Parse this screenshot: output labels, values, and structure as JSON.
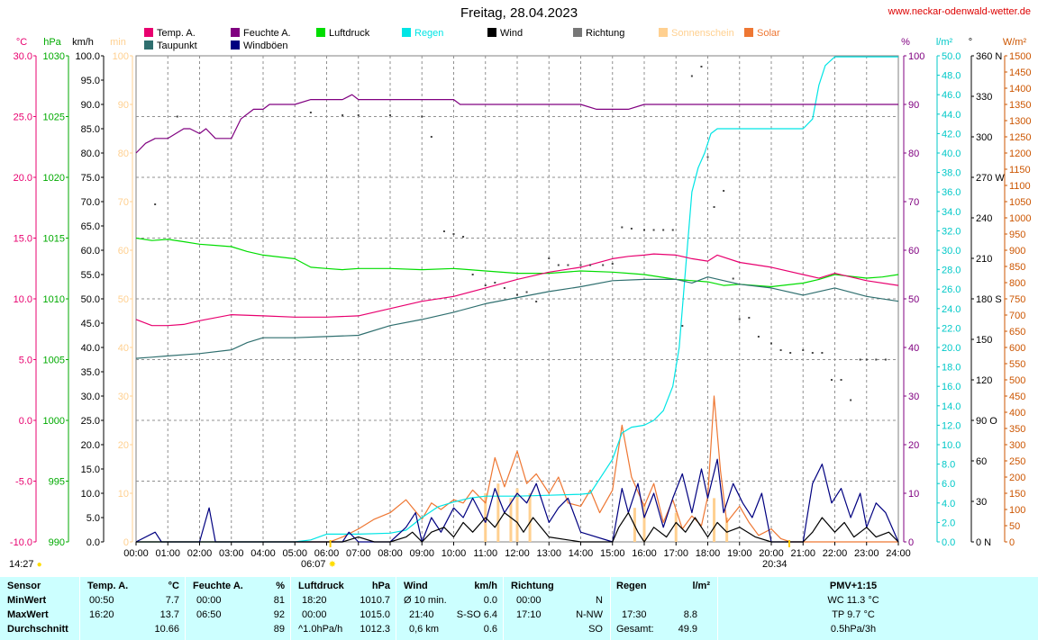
{
  "header": {
    "title": "Freitag, 28.04.2023",
    "site": "www.neckar-odenwald-wetter.de"
  },
  "legend": [
    {
      "label": "Temp. A.",
      "color": "#e8006f"
    },
    {
      "label": "Taupunkt",
      "color": "#2f6f6f"
    },
    {
      "label": "Feuchte A.",
      "color": "#800080"
    },
    {
      "label": "Windböen",
      "color": "#000080"
    },
    {
      "label": "Luftdruck",
      "color": "#00dd00"
    },
    {
      "label": "Regen",
      "color": "#00e5e5"
    },
    {
      "label": "Wind",
      "color": "#000000"
    },
    {
      "label": "Richtung",
      "color": "#777777"
    },
    {
      "label": "Sonnenschein",
      "color": "#ffd090"
    },
    {
      "label": "Solar",
      "color": "#ee7733"
    }
  ],
  "markers": {
    "time_now": "14:27",
    "sunrise": "06:07",
    "sunset": "20:34"
  },
  "chart_data": {
    "type": "line",
    "x_ticks": [
      "00:00",
      "01:00",
      "02:00",
      "03:00",
      "04:00",
      "05:00",
      "06:00",
      "07:00",
      "08:00",
      "09:00",
      "10:00",
      "11:00",
      "12:00",
      "13:00",
      "14:00",
      "15:00",
      "16:00",
      "17:00",
      "18:00",
      "19:00",
      "20:00",
      "21:00",
      "22:00",
      "23:00",
      "24:00"
    ],
    "axes": {
      "temp": {
        "unit": "°C",
        "color": "#e8006f",
        "range": [
          -10,
          30
        ],
        "ticks": [
          "30.0",
          "25.0",
          "20.0",
          "15.0",
          "10.0",
          "5.0",
          "0.0",
          "-5.0",
          "-10.0"
        ]
      },
      "pressure": {
        "unit": "hPa",
        "color": "#00aa00",
        "range": [
          990,
          1030
        ],
        "ticks": [
          "1030",
          "1025",
          "1020",
          "1015",
          "1010",
          "1005",
          "1000",
          "995",
          "990"
        ]
      },
      "wind": {
        "unit": "km/h",
        "color": "#000000",
        "range": [
          0,
          100
        ],
        "ticks": [
          "100.0",
          "95.0",
          "90.0",
          "85.0",
          "80.0",
          "75.0",
          "70.0",
          "65.0",
          "60.0",
          "55.0",
          "50.0",
          "45.0",
          "40.0",
          "35.0",
          "30.0",
          "25.0",
          "20.0",
          "15.0",
          "10.0",
          "5.0",
          "0.0"
        ]
      },
      "sun": {
        "unit": "min",
        "color": "#ffd090",
        "range": [
          0,
          100
        ],
        "ticks": [
          "100",
          "90",
          "80",
          "70",
          "60",
          "50",
          "40",
          "30",
          "20",
          "10",
          "0"
        ]
      },
      "humidity": {
        "unit": "%",
        "color": "#800080",
        "range": [
          0,
          100
        ],
        "ticks": [
          "100",
          "90",
          "80",
          "70",
          "60",
          "50",
          "40",
          "30",
          "20",
          "10",
          "0"
        ]
      },
      "rain": {
        "unit": "l/m²",
        "color": "#00c8c8",
        "range": [
          0,
          50
        ],
        "ticks": [
          "50.0",
          "48.0",
          "46.0",
          "44.0",
          "42.0",
          "40.0",
          "38.0",
          "36.0",
          "34.0",
          "32.0",
          "30.0",
          "28.0",
          "26.0",
          "24.0",
          "22.0",
          "20.0",
          "18.0",
          "16.0",
          "14.0",
          "12.0",
          "10.0",
          "8.0",
          "6.0",
          "4.0",
          "2.0",
          "0.0"
        ]
      },
      "direction": {
        "unit": "°",
        "color": "#000000",
        "range": [
          0,
          360
        ],
        "ticks": [
          "360 N",
          "330",
          "300",
          "270 W",
          "240",
          "210",
          "180 S",
          "150",
          "120",
          "90 O",
          "60",
          "30",
          "0 N"
        ]
      },
      "solar": {
        "unit": "W/m²",
        "color": "#cc5500",
        "range": [
          0,
          1500
        ],
        "ticks": [
          "1500",
          "1450",
          "1400",
          "1350",
          "1300",
          "1250",
          "1200",
          "1150",
          "1100",
          "1050",
          "1000",
          "950",
          "900",
          "850",
          "800",
          "750",
          "700",
          "650",
          "600",
          "550",
          "500",
          "450",
          "400",
          "350",
          "300",
          "250",
          "200",
          "150",
          "100",
          "50",
          "0"
        ]
      }
    },
    "series": [
      {
        "name": "Temp. A.",
        "axis": "temp",
        "color": "#e8006f",
        "x": [
          0,
          0.5,
          1,
          1.5,
          2,
          3,
          4,
          5,
          6,
          7,
          8,
          9,
          10,
          11,
          12,
          13,
          14,
          15,
          15.5,
          16,
          16.3,
          17,
          17.5,
          18,
          18.3,
          19,
          20,
          21,
          21.5,
          22,
          23,
          24
        ],
        "y": [
          8.3,
          7.8,
          7.8,
          7.9,
          8.2,
          8.7,
          8.6,
          8.5,
          8.5,
          8.6,
          9.2,
          9.8,
          10.2,
          10.9,
          11.6,
          12.2,
          12.6,
          13.3,
          13.5,
          13.6,
          13.7,
          13.6,
          13.3,
          13.1,
          13.6,
          13.0,
          12.6,
          12.0,
          11.7,
          12.1,
          11.5,
          11.1
        ]
      },
      {
        "name": "Taupunkt",
        "axis": "temp",
        "color": "#2f6f6f",
        "x": [
          0,
          0.5,
          1,
          2,
          3,
          3.5,
          4,
          5,
          6,
          7,
          8,
          9,
          10,
          11,
          12,
          13,
          14,
          15,
          16,
          17,
          17.5,
          18,
          19,
          20,
          21,
          21.5,
          22,
          23,
          24
        ],
        "y": [
          5.1,
          5.2,
          5.3,
          5.5,
          5.8,
          6.4,
          6.8,
          6.8,
          6.9,
          7.0,
          7.8,
          8.3,
          8.9,
          9.6,
          10.1,
          10.6,
          11.0,
          11.5,
          11.6,
          11.6,
          11.3,
          11.8,
          11.2,
          10.9,
          10.3,
          10.6,
          10.9,
          10.2,
          9.8
        ]
      },
      {
        "name": "Feuchte A.",
        "axis": "humidity",
        "color": "#800080",
        "x": [
          0,
          0.3,
          0.6,
          1,
          1.5,
          1.7,
          2,
          2.2,
          2.5,
          3,
          3.3,
          3.7,
          4,
          4.2,
          4.5,
          5,
          5.5,
          6,
          6.5,
          6.8,
          7,
          8,
          9,
          10,
          10.2,
          12,
          14,
          14.5,
          15,
          15.5,
          16,
          17,
          18,
          24
        ],
        "y": [
          80,
          82,
          83,
          83,
          85,
          85,
          84,
          85,
          83,
          83,
          87,
          89,
          89,
          90,
          90,
          90,
          91,
          91,
          91,
          92,
          91,
          91,
          91,
          91,
          90,
          90,
          90,
          89,
          89,
          89,
          90,
          90,
          90,
          90
        ]
      },
      {
        "name": "Luftdruck",
        "axis": "pressure",
        "color": "#00dd00",
        "x": [
          0,
          0.5,
          1,
          1.5,
          2,
          2.5,
          3,
          3.5,
          4,
          5,
          5.5,
          6,
          6.5,
          7,
          8,
          9,
          10,
          11,
          12,
          13,
          14,
          15,
          15.5,
          16,
          17,
          18,
          18.5,
          19,
          20,
          21,
          21.5,
          22,
          23,
          23.5,
          24
        ],
        "y": [
          1015.0,
          1014.8,
          1014.9,
          1014.7,
          1014.5,
          1014.4,
          1014.3,
          1013.9,
          1013.6,
          1013.3,
          1012.6,
          1012.5,
          1012.4,
          1012.5,
          1012.5,
          1012.4,
          1012.5,
          1012.3,
          1012.1,
          1012.1,
          1012.3,
          1012.2,
          1012.1,
          1012.0,
          1011.6,
          1011.4,
          1011.1,
          1011.2,
          1011.0,
          1011.3,
          1011.6,
          1012.0,
          1011.7,
          1011.8,
          1012.0
        ]
      },
      {
        "name": "Regen",
        "axis": "rain",
        "color": "#00e5e5",
        "x": [
          0,
          5,
          5.5,
          6,
          7,
          8,
          8.5,
          9,
          9.5,
          10,
          10.5,
          11,
          12,
          13,
          14,
          14.3,
          14.7,
          15,
          15.3,
          15.6,
          16,
          16.3,
          16.6,
          16.9,
          17.1,
          17.3,
          17.5,
          17.7,
          17.9,
          18.1,
          18.3,
          19,
          20,
          21,
          21.3,
          21.5,
          21.7,
          22,
          24
        ],
        "y": [
          0,
          0,
          0.2,
          0.8,
          0.8,
          0.9,
          1.2,
          2.5,
          3.6,
          4.1,
          4.5,
          4.7,
          4.7,
          4.8,
          4.9,
          5.0,
          7.0,
          8.5,
          11.2,
          11.8,
          12.0,
          12.5,
          13.5,
          16.0,
          20.0,
          28.0,
          36.0,
          38.5,
          40.0,
          42.0,
          42.5,
          42.5,
          42.5,
          42.5,
          43.5,
          47.0,
          49.0,
          49.9,
          49.9
        ]
      },
      {
        "name": "Wind",
        "axis": "wind",
        "color": "#000000",
        "x": [
          0,
          6.5,
          7,
          7.5,
          8,
          8.5,
          8.7,
          9,
          9.3,
          9.7,
          10,
          10.3,
          10.6,
          11,
          11.3,
          11.6,
          12,
          12.2,
          12.5,
          13,
          14,
          15,
          15.2,
          15.5,
          15.8,
          16,
          16.3,
          16.7,
          17,
          17.3,
          17.6,
          18,
          18.3,
          18.6,
          19,
          19.5,
          20,
          21,
          21.3,
          21.6,
          22,
          22.3,
          22.6,
          23,
          23.3,
          23.7,
          24
        ],
        "y": [
          0,
          0,
          1,
          0,
          0,
          1,
          2,
          0,
          2,
          3,
          1,
          4,
          2,
          5,
          3,
          6,
          4,
          2,
          5,
          1,
          0,
          0,
          3,
          6,
          2,
          0,
          3,
          1,
          4,
          2,
          5,
          1,
          4,
          2,
          3,
          1,
          0,
          0,
          2,
          5,
          2,
          4,
          1,
          3,
          1,
          2,
          0
        ]
      },
      {
        "name": "Windböen",
        "axis": "wind",
        "color": "#000080",
        "x": [
          0,
          0.6,
          0.8,
          1,
          2,
          2.3,
          2.5,
          3,
          6.5,
          6.7,
          7,
          8,
          8.5,
          8.8,
          9,
          9.3,
          9.6,
          10,
          10.3,
          10.6,
          11,
          11.3,
          11.6,
          12,
          12.3,
          12.6,
          13,
          13.3,
          13.6,
          14,
          15,
          15.3,
          15.5,
          15.8,
          16,
          16.3,
          16.6,
          16.9,
          17.2,
          17.5,
          17.8,
          18,
          18.3,
          18.5,
          18.8,
          19.1,
          19.4,
          19.7,
          20,
          21,
          21.3,
          21.6,
          21.9,
          22.2,
          22.5,
          22.8,
          23,
          23.3,
          23.6,
          24
        ],
        "y": [
          0,
          2,
          0,
          0,
          0,
          7,
          0,
          0,
          0,
          2,
          0,
          0,
          3,
          6,
          0,
          5,
          2,
          7,
          5,
          9,
          4,
          11,
          6,
          10,
          8,
          12,
          4,
          7,
          9,
          2,
          0,
          11,
          6,
          12,
          5,
          10,
          3,
          9,
          14,
          6,
          15,
          9,
          17,
          6,
          12,
          8,
          5,
          10,
          0,
          0,
          12,
          16,
          8,
          11,
          5,
          10,
          3,
          8,
          6,
          0
        ]
      },
      {
        "name": "Richtung",
        "axis": "direction",
        "color": "#444444",
        "x": [
          0.6,
          1.3,
          5.5,
          6.5,
          7,
          8,
          9,
          9.3,
          9.7,
          10,
          10.3,
          10.6,
          11,
          11.3,
          11.6,
          12,
          12.3,
          12.6,
          13,
          13.3,
          13.6,
          14,
          14.3,
          14.7,
          15,
          15.3,
          15.6,
          16,
          16.3,
          16.6,
          16.9,
          17.2,
          17.5,
          17.8,
          18,
          18.2,
          18.5,
          18.8,
          19,
          19.3,
          19.6,
          20,
          20.3,
          20.6,
          21,
          21.3,
          21.6,
          21.9,
          22.2,
          22.5,
          22.8,
          23,
          23.3,
          23.6
        ],
        "y": [
          250,
          315,
          318,
          316,
          316,
          316,
          315,
          300,
          230,
          228,
          226,
          198,
          190,
          192,
          188,
          183,
          185,
          178,
          210,
          205,
          205,
          205,
          205,
          205,
          206,
          233,
          232,
          231,
          231,
          231,
          231,
          160,
          345,
          352,
          285,
          248,
          260,
          195,
          165,
          166,
          152,
          147,
          142,
          140,
          142,
          140,
          140,
          120,
          120,
          105,
          135,
          135,
          135,
          135
        ]
      },
      {
        "name": "Solar",
        "axis": "solar",
        "color": "#ee7733",
        "x": [
          0,
          6.1,
          6.5,
          7,
          7.5,
          8,
          8.5,
          9,
          9.3,
          9.6,
          10,
          10.3,
          10.6,
          11,
          11.3,
          11.6,
          12,
          12.3,
          12.6,
          13,
          13.3,
          13.6,
          14,
          14.3,
          14.6,
          15,
          15.3,
          15.6,
          16,
          16.3,
          16.6,
          16.9,
          17.2,
          17.5,
          17.8,
          18,
          18.2,
          18.4,
          18.6,
          19,
          19.3,
          19.6,
          20,
          20.3,
          20.6,
          24
        ],
        "y": [
          0,
          0,
          15,
          40,
          70,
          90,
          130,
          70,
          120,
          100,
          130,
          120,
          160,
          120,
          260,
          170,
          280,
          180,
          210,
          150,
          200,
          120,
          110,
          160,
          90,
          160,
          360,
          200,
          110,
          180,
          60,
          130,
          40,
          80,
          50,
          140,
          450,
          220,
          60,
          110,
          60,
          20,
          40,
          10,
          0,
          0
        ]
      },
      {
        "name": "Sonnenschein",
        "axis": "sun",
        "color": "#ffd090",
        "x": [
          0,
          10.8,
          11,
          11.2,
          11.4,
          11.6,
          11.8,
          12,
          12.2,
          12.4,
          12.6,
          13,
          15.5,
          15.7,
          15.9,
          16,
          16.2,
          16.8,
          17,
          18,
          18.2,
          18.4,
          18.6,
          24
        ],
        "y": [
          0,
          0,
          10,
          0,
          12,
          0,
          9,
          11,
          0,
          10,
          0,
          0,
          0,
          7,
          0,
          8,
          0,
          0,
          6,
          0,
          9,
          0,
          5,
          0
        ]
      }
    ]
  },
  "stats": {
    "sensor": {
      "title": "Sensor",
      "rows": [
        "MinWert",
        "MaxWert",
        "Durchschnitt"
      ]
    },
    "temp": {
      "title": "Temp. A.",
      "unit": "°C",
      "rows": [
        [
          "00:50",
          "7.7"
        ],
        [
          "16:20",
          "13.7"
        ],
        [
          "",
          "10.66"
        ]
      ]
    },
    "humidity": {
      "title": "Feuchte A.",
      "unit": "%",
      "rows": [
        [
          "00:00",
          "81"
        ],
        [
          "06:50",
          "92"
        ],
        [
          "",
          "89"
        ]
      ]
    },
    "pressure": {
      "title": "Luftdruck",
      "unit": "hPa",
      "rows": [
        [
          "18:20",
          "1010.7"
        ],
        [
          "00:00",
          "1015.0"
        ],
        [
          "^1.0hPa/h",
          "1012.3"
        ]
      ]
    },
    "wind": {
      "title": "Wind",
      "unit": "km/h",
      "rows": [
        [
          "Ø 10 min.",
          "0.0"
        ],
        [
          "21:40",
          "S-SO 6.4"
        ],
        [
          "0,6 km",
          "0.6"
        ]
      ]
    },
    "direction": {
      "title": "Richtung",
      "rows": [
        [
          "00:00",
          "N"
        ],
        [
          "17:10",
          "N-NW"
        ],
        [
          "",
          "SO"
        ]
      ]
    },
    "rain": {
      "title": "Regen",
      "unit": "l/m²",
      "rows": [
        [
          "",
          ""
        ],
        [
          "17:30",
          "8.8"
        ],
        [
          "Gesamt:",
          "49.9"
        ]
      ]
    },
    "pmv": {
      "title": "PMV+1:15",
      "rows": [
        "WC 11.3 °C",
        "TP 9.7 °C",
        "0.5hPa/3h"
      ]
    }
  }
}
